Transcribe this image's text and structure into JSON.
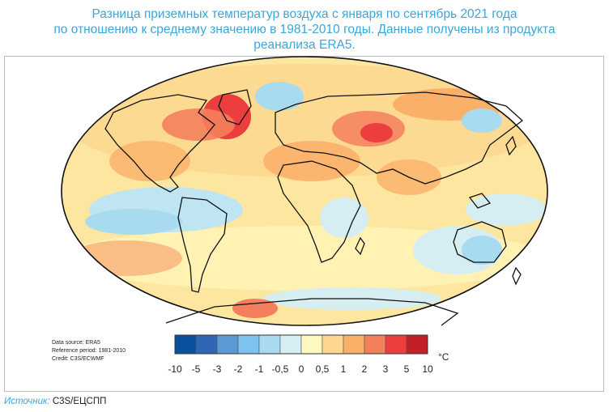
{
  "title_lines": [
    "Разница приземных температур воздуха с января по сентябрь 2021 года",
    "по отношению к среднему значению в 1981-2010 годы. Данные получены из продукта",
    "реанализа ERA5."
  ],
  "credits": {
    "source": "Data source: ERA5",
    "reference": "Reference period: 1981-2010",
    "credit": "Credit: C3S/ECWMF"
  },
  "legend": {
    "unit": "°C",
    "ticks": [
      "-10",
      "-5",
      "-3",
      "-2",
      "-1",
      "-0,5",
      "0",
      "0,5",
      "1",
      "2",
      "3",
      "5",
      "10"
    ],
    "colors": [
      "#08519c",
      "#3166b5",
      "#5b98d6",
      "#7ec2ef",
      "#a9dbf0",
      "#d6eef2",
      "#fff7bf",
      "#fdd78e",
      "#fbb06a",
      "#f47f5c",
      "#ec3d3f",
      "#c41e26"
    ]
  },
  "footer": {
    "label": "Источник:",
    "value": "C3S/ЕЦСПП"
  }
}
